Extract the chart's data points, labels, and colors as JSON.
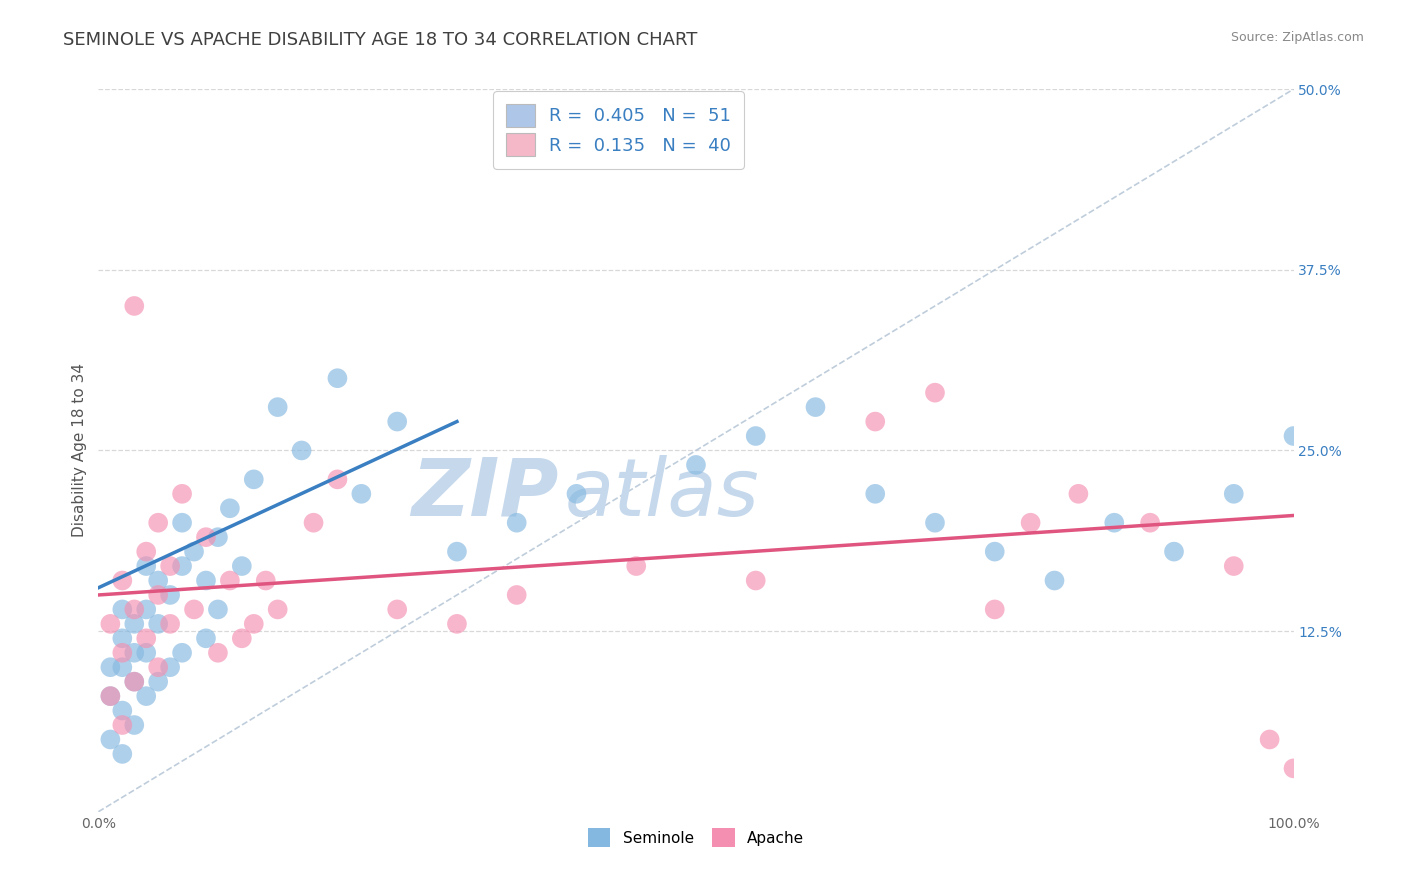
{
  "title": "SEMINOLE VS APACHE DISABILITY AGE 18 TO 34 CORRELATION CHART",
  "source_text": "Source: ZipAtlas.com",
  "ylabel": "Disability Age 18 to 34",
  "xlim": [
    0,
    100
  ],
  "ylim": [
    0,
    50
  ],
  "xtick_labels": [
    "0.0%",
    "100.0%"
  ],
  "ytick_labels": [
    "12.5%",
    "25.0%",
    "37.5%",
    "50.0%"
  ],
  "ytick_values": [
    12.5,
    25.0,
    37.5,
    50.0
  ],
  "seminole_color": "#85b8e0",
  "apache_color": "#f48fb1",
  "seminole_trend_color": "#3a7fc1",
  "apache_trend_color": "#e05580",
  "ref_line_color": "#b8c8d8",
  "watermark_color_zip": "#c5d8ec",
  "watermark_color_atlas": "#c5d8ec",
  "background_color": "#ffffff",
  "grid_color": "#d8d8d8",
  "title_color": "#404040",
  "axis_tick_color": "#4a90d9",
  "title_fontsize": 13,
  "axis_label_fontsize": 11,
  "tick_fontsize": 10,
  "legend_fontsize": 13,
  "seminole_N": 51,
  "apache_N": 40,
  "seminole_R": 0.405,
  "apache_R": 0.135,
  "seminole_x": [
    1,
    1,
    1,
    2,
    2,
    2,
    2,
    2,
    3,
    3,
    3,
    3,
    4,
    4,
    4,
    4,
    5,
    5,
    5,
    6,
    6,
    7,
    7,
    7,
    8,
    9,
    9,
    10,
    10,
    11,
    12,
    13,
    15,
    17,
    20,
    22,
    25,
    30,
    35,
    40,
    50,
    55,
    60,
    65,
    70,
    75,
    80,
    85,
    90,
    95,
    100
  ],
  "seminole_y": [
    5,
    8,
    10,
    4,
    7,
    10,
    12,
    14,
    6,
    9,
    11,
    13,
    8,
    11,
    14,
    17,
    9,
    13,
    16,
    10,
    15,
    11,
    17,
    20,
    18,
    12,
    16,
    14,
    19,
    21,
    17,
    23,
    28,
    25,
    30,
    22,
    27,
    18,
    20,
    22,
    24,
    26,
    28,
    22,
    20,
    18,
    16,
    20,
    18,
    22,
    26
  ],
  "apache_x": [
    1,
    1,
    2,
    2,
    2,
    3,
    3,
    3,
    4,
    4,
    5,
    5,
    5,
    6,
    6,
    7,
    8,
    9,
    10,
    11,
    12,
    13,
    14,
    15,
    18,
    20,
    25,
    30,
    35,
    45,
    55,
    65,
    70,
    75,
    78,
    82,
    88,
    95,
    98,
    100
  ],
  "apache_y": [
    8,
    13,
    6,
    11,
    16,
    9,
    14,
    35,
    12,
    18,
    10,
    15,
    20,
    13,
    17,
    22,
    14,
    19,
    11,
    16,
    12,
    13,
    16,
    14,
    20,
    23,
    14,
    13,
    15,
    17,
    16,
    27,
    29,
    14,
    20,
    22,
    20,
    17,
    5,
    3
  ],
  "blue_trend_x0": 0,
  "blue_trend_y0": 15.5,
  "blue_trend_x1": 30,
  "blue_trend_y1": 27.0,
  "pink_trend_x0": 0,
  "pink_trend_y0": 15.0,
  "pink_trend_x1": 100,
  "pink_trend_y1": 20.5
}
